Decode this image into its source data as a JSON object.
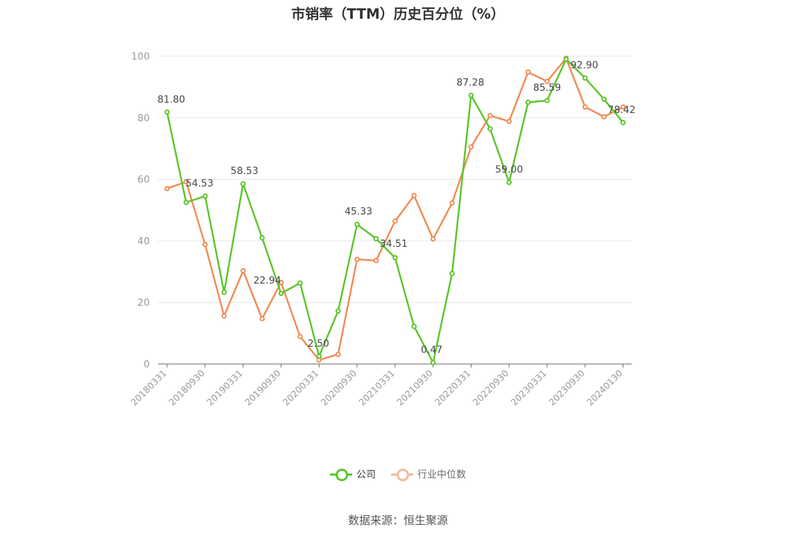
{
  "colors": {
    "company": "#5ac629",
    "industry": "#f08b55",
    "industry_legend": "#f6b79a",
    "grid": "#e6e6e6",
    "axis": "#666666"
  },
  "chart_data": {
    "type": "line",
    "title": "市销率（TTM）历史百分位（%）",
    "ylim": [
      0,
      100
    ],
    "yticks": [
      0,
      20,
      40,
      60,
      80,
      100
    ],
    "x": [
      "20180331",
      "20180630",
      "20180930",
      "20181231",
      "20190331",
      "20190630",
      "20190930",
      "20191231",
      "20200331",
      "20200630",
      "20200930",
      "20201231",
      "20210331",
      "20210630",
      "20210930",
      "20211231",
      "20220331",
      "20220630",
      "20220930",
      "20221231",
      "20230331",
      "20230630",
      "20230930",
      "20231231",
      "20240130"
    ],
    "xtick_labels": [
      "20180331",
      "",
      "20180930",
      "",
      "20190331",
      "",
      "20190930",
      "",
      "20200331",
      "",
      "20200930",
      "",
      "20210331",
      "",
      "20210930",
      "",
      "20220331",
      "",
      "20220930",
      "",
      "20230331",
      "",
      "20230930",
      "",
      "20240130"
    ],
    "series": [
      {
        "name": "公司",
        "values": [
          81.8,
          52.5,
          54.53,
          23.3,
          58.53,
          41.0,
          22.94,
          26.3,
          2.5,
          17.2,
          45.33,
          40.7,
          34.51,
          12.2,
          0.47,
          29.4,
          87.28,
          76.4,
          59.0,
          85.0,
          85.59,
          99.0,
          92.9,
          86.0,
          78.42
        ],
        "labels": [
          "81.80",
          "",
          "54.53",
          "",
          "58.53",
          "",
          "22.94",
          "",
          "2.50",
          "",
          "45.33",
          "",
          "34.51",
          "",
          "0.47",
          "",
          "87.28",
          "",
          "59.00",
          "",
          "85.59",
          "",
          "92.90",
          "",
          "78.42"
        ]
      },
      {
        "name": "行业中位数",
        "values": [
          57.0,
          59.2,
          38.8,
          15.6,
          30.3,
          14.7,
          26.5,
          8.9,
          1.3,
          3.1,
          34.0,
          33.6,
          46.4,
          54.7,
          40.6,
          52.3,
          70.5,
          80.7,
          78.8,
          94.8,
          91.8,
          99.3,
          83.5,
          80.3,
          83.5
        ]
      }
    ],
    "legend_position": "bottom-center",
    "grid": true
  },
  "legend": {
    "company": "公司",
    "industry": "行业中位数"
  },
  "source": "数据来源：恒生聚源"
}
